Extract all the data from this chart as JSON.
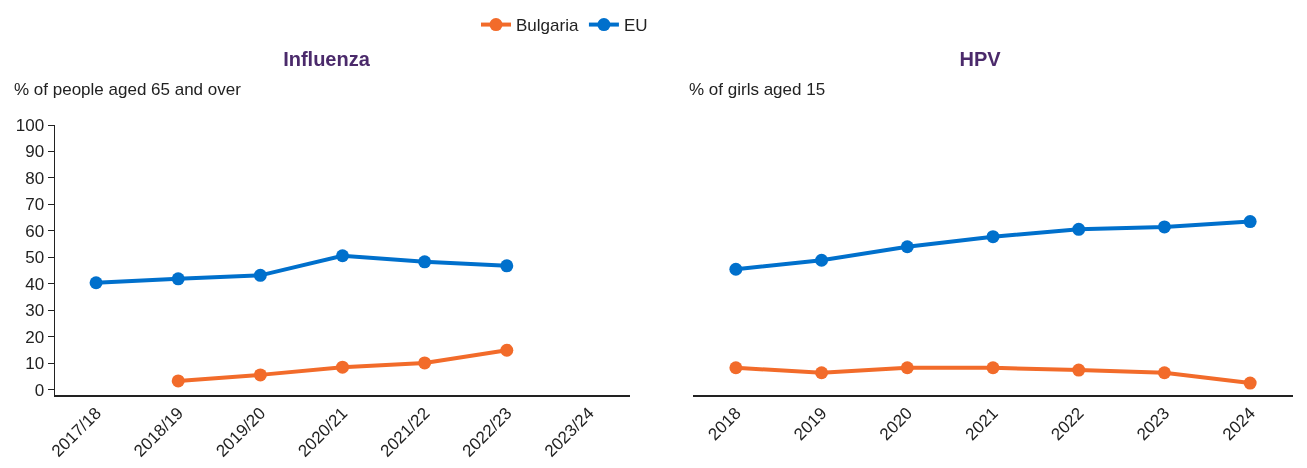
{
  "chart_data": [
    {
      "type": "line",
      "title": "Influenza",
      "ylabel": "% of people aged 65 and over",
      "categories": [
        "2017/18",
        "2018/19",
        "2019/20",
        "2020/21",
        "2021/22",
        "2022/23",
        "2023/24"
      ],
      "series": [
        {
          "name": "Bulgaria",
          "color": "#f26b2a",
          "values": [
            null,
            3.3,
            5.6,
            8.5,
            10.1,
            14.9,
            null
          ]
        },
        {
          "name": "EU",
          "color": "#0070cc",
          "values": [
            40.4,
            41.9,
            43.2,
            50.6,
            48.3,
            46.8,
            null
          ]
        }
      ],
      "ylim": [
        -2,
        100
      ],
      "yticks": [
        0,
        10,
        20,
        30,
        40,
        50,
        60,
        70,
        80,
        90,
        100
      ],
      "grid": false,
      "legend": "top",
      "marker": "circle",
      "line_style": "solid"
    },
    {
      "type": "line",
      "title": "HPV",
      "ylabel": "% of girls aged 15",
      "categories": [
        "2018",
        "2019",
        "2020",
        "2021",
        "2022",
        "2023",
        "2024"
      ],
      "series": [
        {
          "color": "#f26b2a",
          "values": [
            8.3,
            6.4,
            8.3,
            8.3,
            7.4,
            6.4,
            2.5
          ]
        },
        {
          "color": "#0070cc",
          "values": [
            45.5,
            48.9,
            54.0,
            57.8,
            60.6,
            61.5,
            63.5
          ]
        }
      ],
      "ylim": [
        -2,
        100
      ],
      "tick_labels": "x",
      "grid": false,
      "marker": "circle",
      "line_style": "solid"
    }
  ]
}
